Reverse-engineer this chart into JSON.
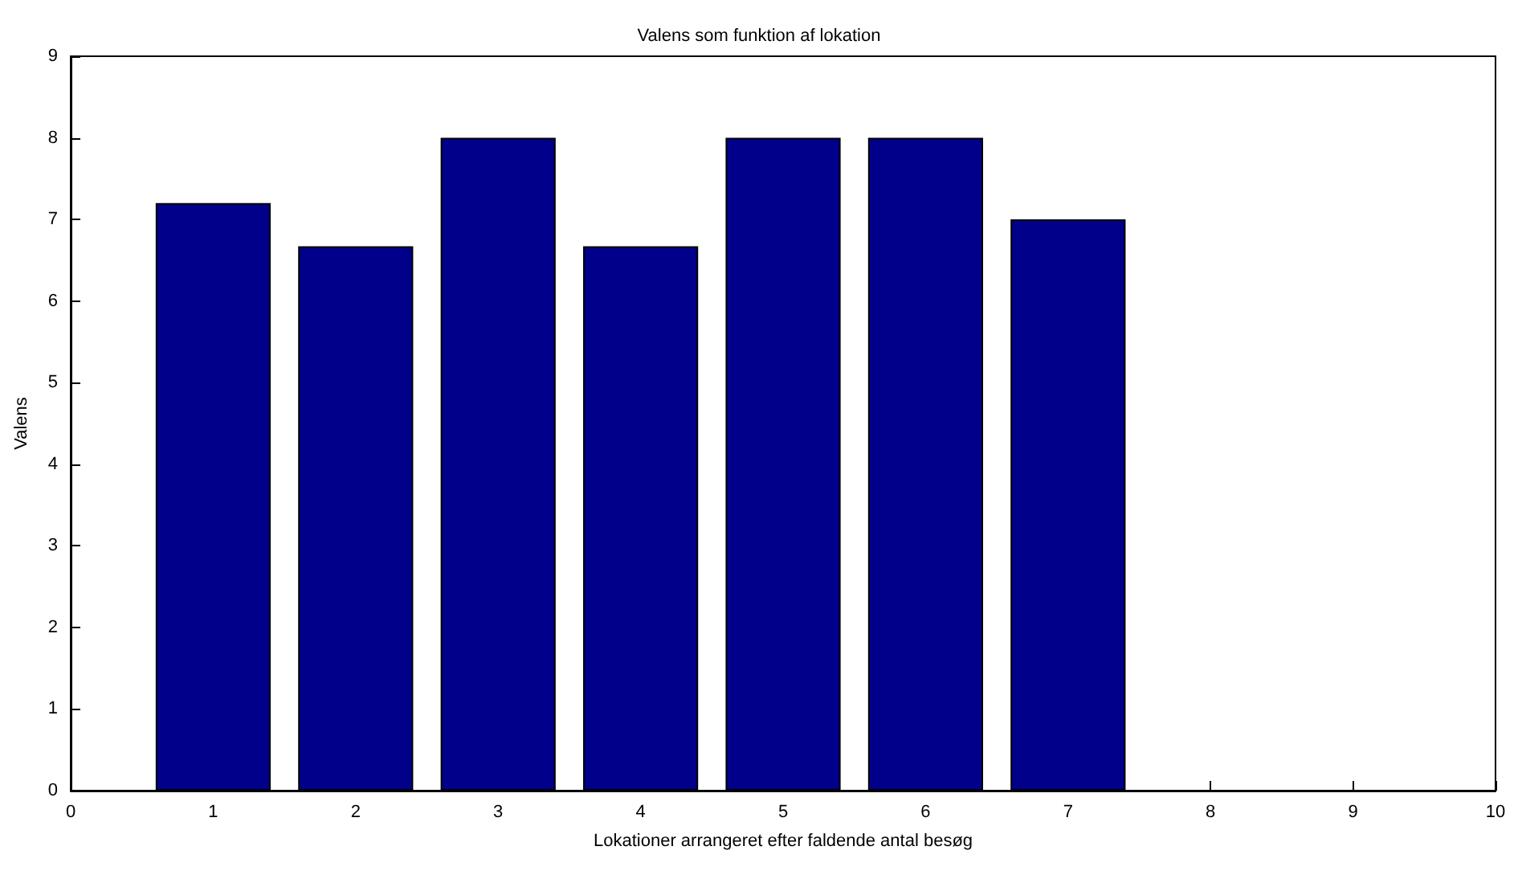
{
  "chart_data": {
    "type": "bar",
    "title": "Valens som funktion af lokation",
    "xlabel": "Lokationer arrangeret efter faldende antal besøg",
    "ylabel": "Valens",
    "x": [
      1,
      2,
      3,
      4,
      5,
      6,
      7
    ],
    "series": [
      {
        "color": "#00008b",
        "values": [
          7.2,
          6.67,
          8,
          6.67,
          8,
          8,
          7
        ]
      }
    ],
    "xlim": [
      0,
      10
    ],
    "xticks": [
      0,
      1,
      2,
      3,
      4,
      5,
      6,
      7,
      8,
      9,
      10
    ],
    "ylim": [
      0,
      9
    ],
    "yticks": [
      0,
      1,
      2,
      3,
      4,
      5,
      6,
      7,
      8,
      9
    ],
    "grid": false
  }
}
